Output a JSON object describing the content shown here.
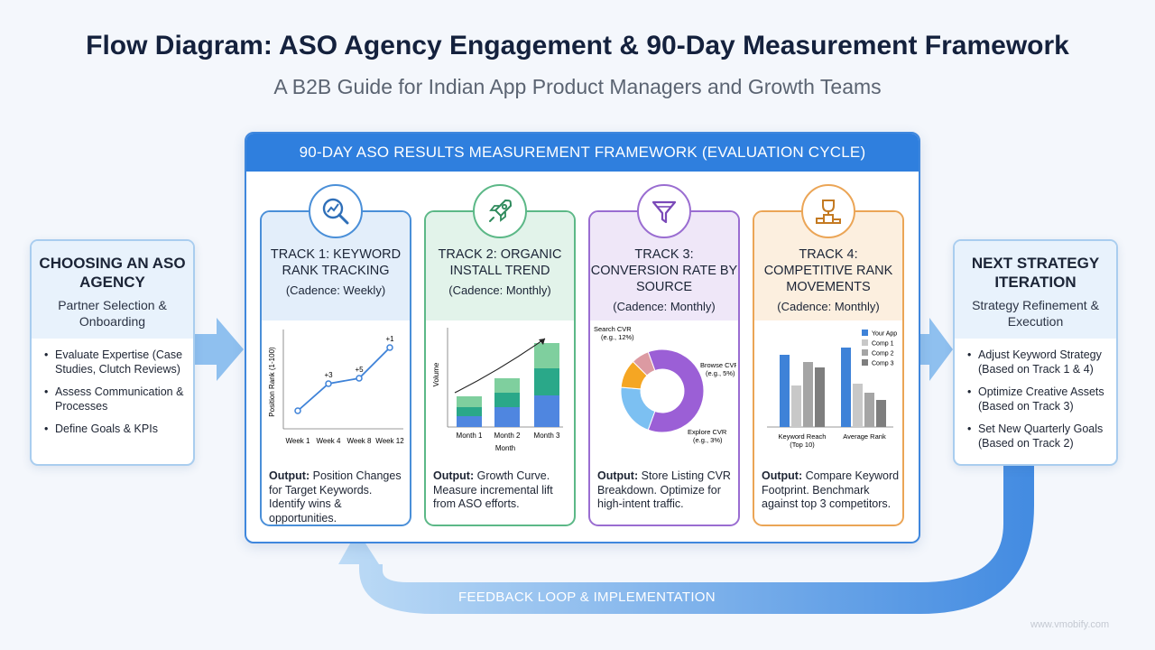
{
  "title": "Flow Diagram: ASO Agency Engagement & 90-Day Measurement Framework",
  "subtitle": "A B2B Guide for Indian App Product Managers and Growth Teams",
  "framework": {
    "header": "90-DAY ASO RESULTS MEASUREMENT FRAMEWORK (EVALUATION CYCLE)"
  },
  "left": {
    "title": "CHOOSING AN ASO AGENCY",
    "subtitle": "Partner Selection & Onboarding",
    "items": [
      "Evaluate Expertise (Case Studies, Clutch Reviews)",
      "Assess Communication & Processes",
      "Define Goals & KPIs"
    ]
  },
  "right": {
    "title": "NEXT STRATEGY ITERATION",
    "subtitle": "Strategy Refinement & Execution",
    "items": [
      "Adjust Keyword Strategy (Based on Track 1 & 4)",
      "Optimize Creative Assets (Based on Track 3)",
      "Set New Quarterly Goals (Based on Track 2)"
    ]
  },
  "tracks": [
    {
      "name": "TRACK 1: KEYWORD RANK TRACKING",
      "cadence": "(Cadence: Weekly)",
      "icon": "search-chart-icon",
      "output_label": "Output:",
      "output_text": "Position Changes for Target Keywords. Identify wins & opportunities.",
      "color": "#4a8fd8"
    },
    {
      "name": "TRACK 2: ORGANIC INSTALL TREND",
      "cadence": "(Cadence: Monthly)",
      "icon": "rocket-icon",
      "output_label": "Output:",
      "output_text": "Growth Curve. Measure incremental lift from ASO efforts.",
      "color": "#5cb887"
    },
    {
      "name": "TRACK 3: CONVERSION RATE BY SOURCE",
      "cadence": "(Cadence: Monthly)",
      "icon": "funnel-icon",
      "output_label": "Output:",
      "output_text": "Store Listing CVR Breakdown. Optimize for high-intent traffic.",
      "color": "#9a6dd1"
    },
    {
      "name": "TRACK 4: COMPETITIVE RANK MOVEMENTS",
      "cadence": "(Cadence: Monthly)",
      "icon": "trophy-podium-icon",
      "output_label": "Output:",
      "output_text": "Compare Keyword Footprint. Benchmark against top 3 competitors.",
      "color": "#eba556"
    }
  ],
  "chart1": {
    "ylabel": "Position Rank (1-100)",
    "x": [
      "Week 1",
      "Week 4",
      "Week 8",
      "Week 12"
    ],
    "y": [
      40,
      25,
      22,
      5
    ],
    "annotations": [
      "+3",
      "+5",
      "+1"
    ]
  },
  "chart2": {
    "ylabel": "Volume",
    "xlabel": "Month",
    "categories": [
      "Month 1",
      "Month 2",
      "Month 3"
    ],
    "stacks": [
      [
        1,
        1,
        1
      ],
      [
        1.5,
        1.5,
        1.5
      ],
      [
        2,
        2,
        2
      ]
    ],
    "colors": [
      "#4f86e0",
      "#2aa889",
      "#7fcf9e"
    ]
  },
  "chart3": {
    "slices": [
      {
        "label": "Search CVR\n(e.g., 12%)",
        "value": 12,
        "color": "#9b5fd6"
      },
      {
        "label": "Browse CVR\n(e.g., 5%)",
        "value": 5,
        "color": "#f5a623"
      },
      {
        "label": "Explore CVR\n(e.g., 3%)",
        "value": 3,
        "color": "#7cc0f2"
      }
    ],
    "labels": {
      "search": "Search CVR",
      "search_eg": "(e.g., 12%)",
      "browse": "Browse CVR",
      "browse_eg": "(e.g., 5%)",
      "explore": "Explore CVR",
      "explore_eg": "(e.g., 3%)"
    }
  },
  "chart4": {
    "categories": [
      "Keyword Reach (Top 10)",
      "Average Rank"
    ],
    "legend": [
      "Your App",
      "Comp 1",
      "Comp 2",
      "Comp 3"
    ],
    "colors": [
      "#3e82d8",
      "#c8c8c8",
      "#a5a5a5",
      "#7e7e7e"
    ]
  },
  "feedback": "FEEDBACK LOOP & IMPLEMENTATION",
  "watermark": "www.vmobify.com"
}
